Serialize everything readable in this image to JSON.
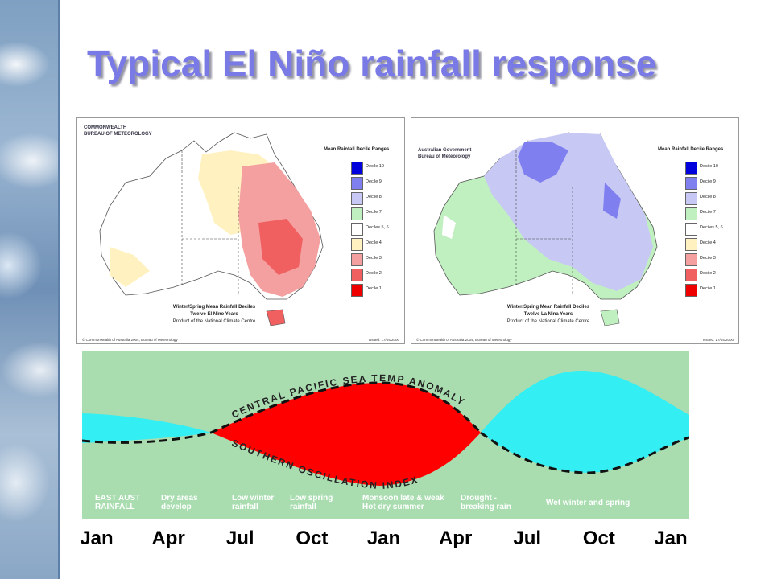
{
  "slide": {
    "title": "Typical El Niño rainfall response"
  },
  "colors": {
    "title": "#7a7ae6",
    "soi_background": "#a9ddb0",
    "anomaly_positive": "#ff0000",
    "anomaly_negative": "#33eef2"
  },
  "maps": [
    {
      "org_line1": "COMMONWEALTH",
      "org_line2": "BUREAU OF METEOROLOGY",
      "legend_title": "Mean Rainfall Decile Ranges",
      "caption_line1": "Winter/Spring Mean Rainfall Deciles",
      "caption_line2": "Twelve El Nino Years",
      "caption_line3": "Product of the National Climate Centre",
      "footer_left": "© Commonwealth of Australia 2004, Bureau of Meteorology",
      "footer_right": "Issued: 17/04/2000",
      "dominant": "dry"
    },
    {
      "org_line1": "Australian Government",
      "org_line2": "Bureau of Meteorology",
      "legend_title": "Mean Rainfall Decile Ranges",
      "caption_line1": "Winter/Spring Mean Rainfall Deciles",
      "caption_line2": "Twelve La Nina Years",
      "caption_line3": "Product of the National Climate Centre",
      "footer_left": "© Commonwealth of Australia 2004, Bureau of Meteorology",
      "footer_right": "Issued: 17/04/2000",
      "dominant": "wet"
    }
  ],
  "legend": [
    {
      "label": "Decile 10",
      "color": "#0000dd"
    },
    {
      "label": "Decile 9",
      "color": "#7f7ff0"
    },
    {
      "label": "Decile 8",
      "color": "#c8c8f4"
    },
    {
      "label": "Decile 7",
      "color": "#c0f0c0"
    },
    {
      "label": "Deciles 5, 6",
      "color": "#ffffff"
    },
    {
      "label": "Decile 4",
      "color": "#fff2c0"
    },
    {
      "label": "Decile 3",
      "color": "#f5a0a0"
    },
    {
      "label": "Decile 2",
      "color": "#f06060"
    },
    {
      "label": "Decile 1",
      "color": "#ee0000"
    }
  ],
  "soi_diagram": {
    "upper_label": "CENTRAL PACIFIC SEA TEMP ANOMALY",
    "lower_label": "SOUTHERN OSCILLATION INDEX",
    "events": [
      {
        "text": "EAST AUST\nRAINFALL"
      },
      {
        "text": "Dry areas\ndevelop"
      },
      {
        "text": "Low winter\nrainfall"
      },
      {
        "text": "Low spring\nrainfall"
      },
      {
        "text": "Monsoon late & weak\nHot dry summer"
      },
      {
        "text": "Drought -\nbreaking rain"
      },
      {
        "text": "Wet winter and spring"
      }
    ]
  },
  "months": [
    "Jan",
    "Apr",
    "Jul",
    "Oct",
    "Jan",
    "Apr",
    "Jul",
    "Oct",
    "Jan"
  ]
}
